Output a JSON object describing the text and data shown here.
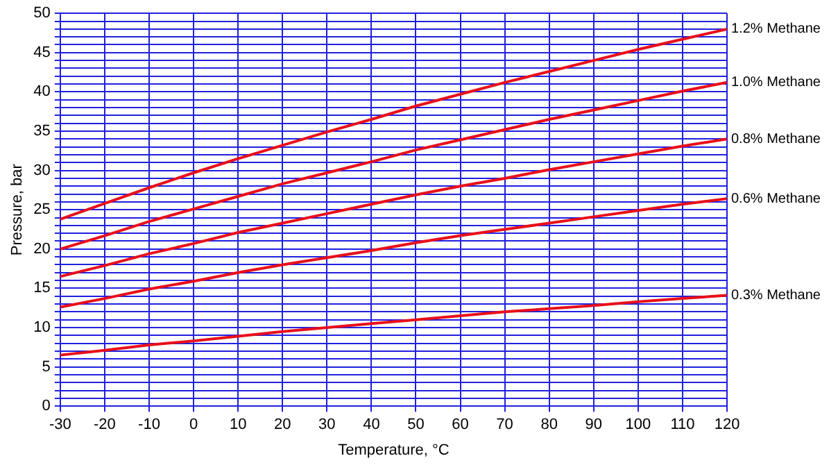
{
  "chart_data": {
    "type": "line",
    "xlabel": "Temperature, °C",
    "ylabel": "Pressure, bar",
    "x": [
      -30,
      -20,
      -10,
      0,
      10,
      20,
      30,
      40,
      50,
      60,
      70,
      80,
      90,
      100,
      110,
      120
    ],
    "xlim": [
      -30,
      120
    ],
    "xticks": [
      -30,
      -20,
      -10,
      0,
      10,
      20,
      30,
      40,
      50,
      60,
      70,
      80,
      90,
      100,
      110,
      120
    ],
    "ylim": [
      0,
      50
    ],
    "yticks": [
      0,
      {
        "value": 1,
        "label": null
      },
      {
        "value": 2,
        "label": null
      },
      {
        "value": 3,
        "label": null
      },
      {
        "value": 4,
        "label": null
      },
      5,
      {
        "value": 6,
        "label": null
      },
      {
        "value": 7,
        "label": null
      },
      {
        "value": 8,
        "label": null
      },
      {
        "value": 9,
        "label": null
      },
      10,
      {
        "value": 11,
        "label": null
      },
      {
        "value": 12,
        "label": null
      },
      {
        "value": 13,
        "label": null
      },
      {
        "value": 14,
        "label": null
      },
      15,
      {
        "value": 16,
        "label": null
      },
      {
        "value": 17,
        "label": null
      },
      {
        "value": 18,
        "label": null
      },
      {
        "value": 19,
        "label": null
      },
      20,
      {
        "value": 21,
        "label": null
      },
      {
        "value": 22,
        "label": null
      },
      {
        "value": 23,
        "label": null
      },
      {
        "value": 24,
        "label": null
      },
      25,
      {
        "value": 26,
        "label": null
      },
      {
        "value": 27,
        "label": null
      },
      {
        "value": 28,
        "label": null
      },
      {
        "value": 29,
        "label": null
      },
      30,
      {
        "value": 31,
        "label": null
      },
      {
        "value": 32,
        "label": null
      },
      {
        "value": 33,
        "label": null
      },
      {
        "value": 34,
        "label": null
      },
      35,
      {
        "value": 36,
        "label": null
      },
      {
        "value": 37,
        "label": null
      },
      {
        "value": 38,
        "label": null
      },
      {
        "value": 39,
        "label": null
      },
      40,
      {
        "value": 41,
        "label": null
      },
      {
        "value": 42,
        "label": null
      },
      {
        "value": 43,
        "label": null
      },
      {
        "value": 44,
        "label": null
      },
      45,
      {
        "value": 46,
        "label": null
      },
      {
        "value": 47,
        "label": null
      },
      {
        "value": 48,
        "label": null
      },
      {
        "value": 49,
        "label": null
      },
      50
    ],
    "grid": true,
    "legend": false,
    "marker": "none",
    "line_style": "solid",
    "series": [
      {
        "name": "1.2% Methane",
        "color": "#e8101a",
        "values": [
          23.8,
          25.8,
          27.8,
          29.7,
          31.5,
          33.2,
          34.9,
          36.5,
          38.2,
          39.7,
          41.2,
          42.6,
          44.0,
          45.4,
          46.7,
          48.0
        ]
      },
      {
        "name": "1.0% Methane",
        "color": "#e8101a",
        "values": [
          20.0,
          21.7,
          23.5,
          25.1,
          26.7,
          28.3,
          29.7,
          31.1,
          32.6,
          33.9,
          35.2,
          36.5,
          37.7,
          38.9,
          40.1,
          41.2
        ]
      },
      {
        "name": "0.8% Methane",
        "color": "#e8101a",
        "values": [
          16.5,
          17.9,
          19.4,
          20.7,
          22.1,
          23.3,
          24.5,
          25.7,
          26.9,
          28.0,
          29.0,
          30.1,
          31.1,
          32.1,
          33.1,
          34.0
        ]
      },
      {
        "name": "0.6% Methane",
        "color": "#e8101a",
        "values": [
          12.6,
          13.7,
          14.9,
          15.9,
          17.0,
          18.0,
          18.9,
          19.8,
          20.8,
          21.7,
          22.5,
          23.3,
          24.1,
          24.9,
          25.7,
          26.4
        ]
      },
      {
        "name": "0.3% Methane",
        "color": "#e8101a",
        "values": [
          6.5,
          7.1,
          7.8,
          8.3,
          8.9,
          9.5,
          10.0,
          10.5,
          11.0,
          11.5,
          12.0,
          12.4,
          12.8,
          13.3,
          13.7,
          14.1
        ]
      }
    ]
  }
}
